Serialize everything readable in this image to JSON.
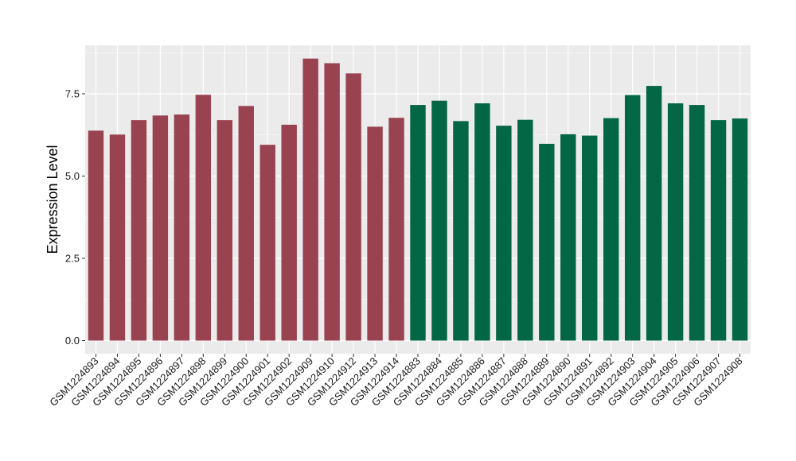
{
  "chart_data": {
    "type": "bar",
    "title": "",
    "xlabel": "",
    "ylabel": "Expression Level",
    "ylim": [
      0,
      9.1
    ],
    "y_ticks": [
      0.0,
      2.5,
      5.0,
      7.5
    ],
    "y_tick_labels": [
      "0.0",
      "2.5",
      "5.0",
      "7.5"
    ],
    "grid": true,
    "legend": "none",
    "panel_background": "#ebebeb",
    "grid_color": "#ffffff",
    "categories": [
      "GSM1224893",
      "GSM1224894",
      "GSM1224895",
      "GSM1224896",
      "GSM1224897",
      "GSM1224898",
      "GSM1224899",
      "GSM1224900",
      "GSM1224901",
      "GSM1224902",
      "GSM1224909",
      "GSM1224910",
      "GSM1224912",
      "GSM1224913",
      "GSM1224914",
      "GSM1224883",
      "GSM1224884",
      "GSM1224885",
      "GSM1224886",
      "GSM1224887",
      "GSM1224888",
      "GSM1224889",
      "GSM1224890",
      "GSM1224891",
      "GSM1224892",
      "GSM1224903",
      "GSM1224904",
      "GSM1224905",
      "GSM1224906",
      "GSM1224907",
      "GSM1224908"
    ],
    "values": [
      6.38,
      6.26,
      6.7,
      6.84,
      6.87,
      7.47,
      6.7,
      7.13,
      5.95,
      6.56,
      8.57,
      8.43,
      8.12,
      6.5,
      6.77,
      7.16,
      7.29,
      6.67,
      7.21,
      6.53,
      6.71,
      5.98,
      6.27,
      6.23,
      6.76,
      7.46,
      7.74,
      7.21,
      7.16,
      6.7,
      6.75
    ],
    "bar_colors": [
      "#9a4350",
      "#9a4350",
      "#9a4350",
      "#9a4350",
      "#9a4350",
      "#9a4350",
      "#9a4350",
      "#9a4350",
      "#9a4350",
      "#9a4350",
      "#9a4350",
      "#9a4350",
      "#9a4350",
      "#9a4350",
      "#9a4350",
      "#036645",
      "#036645",
      "#036645",
      "#036645",
      "#036645",
      "#036645",
      "#036645",
      "#036645",
      "#036645",
      "#036645",
      "#036645",
      "#036645",
      "#036645",
      "#036645",
      "#036645",
      "#036645"
    ]
  }
}
